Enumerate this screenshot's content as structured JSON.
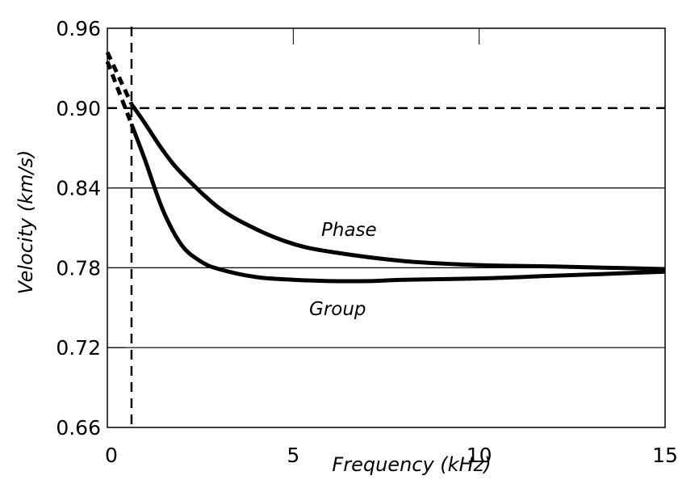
{
  "chart_data": {
    "type": "line",
    "title": "",
    "xlabel": "Frequency  (kHz)",
    "ylabel": "Velocity  (km/s)",
    "xlim": [
      0,
      15
    ],
    "ylim": [
      0.66,
      0.96
    ],
    "x_ticks": [
      "0",
      "5",
      "10",
      "15"
    ],
    "y_ticks": [
      "0.96",
      "0.90",
      "0.84",
      "0.78",
      "0.72",
      "0.66"
    ],
    "grid": "horizontal",
    "reference_lines": [
      {
        "orientation": "horizontal",
        "value": 0.9,
        "style": "dashed"
      },
      {
        "orientation": "vertical",
        "value": 0.65,
        "style": "dashed"
      }
    ],
    "series": [
      {
        "name": "Phase",
        "x": [
          0.65,
          1,
          1.5,
          2,
          3,
          4,
          5,
          6,
          8,
          10,
          12,
          15
        ],
        "y": [
          0.903,
          0.889,
          0.868,
          0.851,
          0.825,
          0.809,
          0.798,
          0.792,
          0.785,
          0.782,
          0.781,
          0.779
        ],
        "extrapolated": {
          "x": [
            0.0,
            0.65
          ],
          "y": [
            0.942,
            0.903
          ]
        }
      },
      {
        "name": "Group",
        "x": [
          0.65,
          1,
          1.5,
          2,
          2.5,
          3,
          4,
          5,
          6,
          7,
          8,
          10,
          12,
          15
        ],
        "y": [
          0.888,
          0.862,
          0.823,
          0.797,
          0.785,
          0.779,
          0.773,
          0.771,
          0.77,
          0.77,
          0.771,
          0.772,
          0.774,
          0.777
        ],
        "extrapolated": {
          "x": [
            0.0,
            0.65
          ],
          "y": [
            0.935,
            0.888
          ]
        }
      }
    ],
    "annotations": [
      "Phase",
      "Group"
    ]
  }
}
